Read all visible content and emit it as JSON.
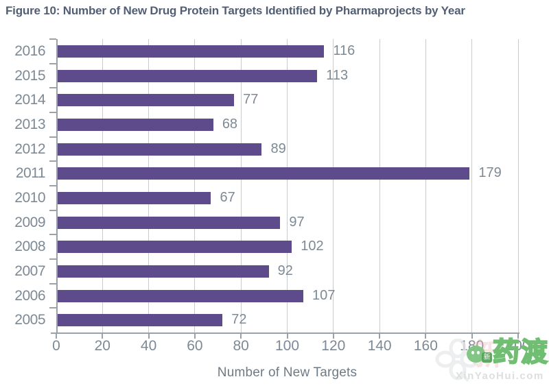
{
  "title": "Figure 10: Number of New Drug Protein Targets Identified by Pharmaprojects by Year",
  "chart_data": {
    "type": "bar",
    "orientation": "horizontal",
    "title": "Figure 10: Number of New Drug Protein Targets Identified by Pharmaprojects by Year",
    "categories": [
      "2016",
      "2015",
      "2014",
      "2013",
      "2012",
      "2011",
      "2010",
      "2009",
      "2008",
      "2007",
      "2006",
      "2005"
    ],
    "values": [
      116,
      113,
      77,
      68,
      89,
      179,
      67,
      97,
      102,
      92,
      107,
      72
    ],
    "xlabel": "Number of New Targets",
    "ylabel": "",
    "xlim": [
      0,
      200
    ],
    "xticks": [
      0,
      20,
      40,
      60,
      80,
      100,
      120,
      140,
      160,
      180,
      200
    ],
    "grid": true,
    "legend": false,
    "data_labels": true
  },
  "colors": {
    "bar": "#5E4B8B",
    "title_text": "#525E74",
    "axis_text": "#7D8994",
    "axis_line": "#9AA1A8",
    "gridline": "#C8CCCF",
    "watermark_green": "#6FBE72",
    "watermark_gray": "#DCDEE0"
  },
  "watermark": {
    "logo_text": "药渡",
    "badge_text": "新",
    "pink_text": "新",
    "url_text": "XinYaoHui.com"
  }
}
